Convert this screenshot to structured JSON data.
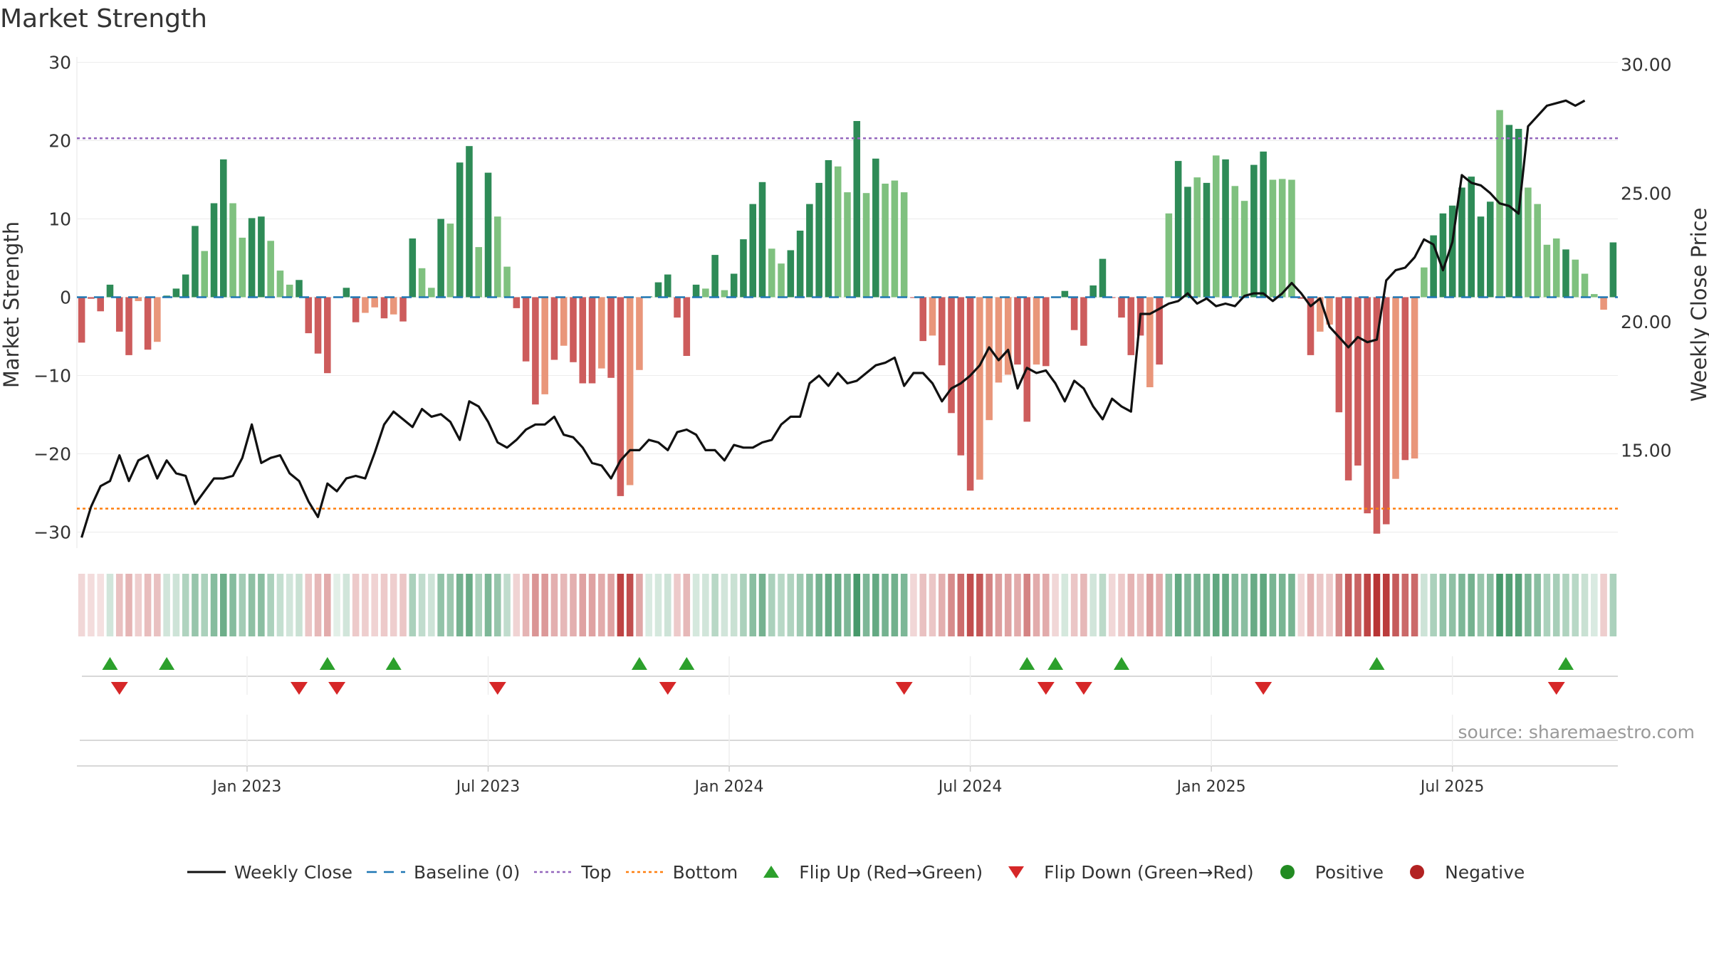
{
  "title": "Market Strength",
  "source": "source: sharemaestro.com",
  "colors": {
    "pos_dark": "#2e8b57",
    "pos_light": "#7fc17f",
    "neg_dark": "#cd5c5c",
    "neg_light": "#e9967a",
    "line": "#111111",
    "baseline": "#1f77b4",
    "top": "#9467bd",
    "bottom": "#ff7f0e",
    "flip_up": "#2ca02c",
    "flip_down": "#d62728",
    "positive": "#228b22",
    "negative": "#b22222"
  },
  "legend": [
    {
      "key": "line",
      "label": "Weekly Close"
    },
    {
      "key": "baseline",
      "label": "Baseline (0)"
    },
    {
      "key": "top",
      "label": "Top"
    },
    {
      "key": "bottom",
      "label": "Bottom"
    },
    {
      "key": "flip_up",
      "label": "Flip Up (Red→Green)"
    },
    {
      "key": "flip_down",
      "label": "Flip Down (Green→Red)"
    },
    {
      "key": "positive",
      "label": "Positive"
    },
    {
      "key": "negative",
      "label": "Negative"
    }
  ],
  "chart_data": {
    "type": "bar",
    "title": "Market Strength",
    "ylabel": "Market Strength",
    "y2label": "Weekly Close Price",
    "ylim": [
      -32.5,
      32.5
    ],
    "y2lim": [
      11.05,
      30.85
    ],
    "yticks": [
      "30",
      "20",
      "10",
      "0",
      "−10",
      "−20",
      "−30"
    ],
    "y2ticks": [
      "30.00",
      "25.00",
      "20.00",
      "15.00"
    ],
    "xticks": [
      "Jan 2023",
      "Jul 2023",
      "Jan 2024",
      "Jul 2024",
      "Jan 2025",
      "Jul 2025"
    ],
    "top_level": 20.3,
    "bottom_level": -27.0,
    "baseline": 0,
    "strength": [
      -5.8,
      -0.2,
      -1.8,
      1.6,
      -4.4,
      -7.4,
      -0.5,
      -6.7,
      -5.7,
      0.2,
      1.1,
      2.9,
      9.1,
      5.9,
      12.0,
      17.6,
      12.0,
      7.6,
      10.1,
      10.3,
      7.2,
      3.4,
      1.6,
      2.2,
      -4.6,
      -7.2,
      -9.7,
      0.1,
      1.2,
      -3.2,
      -2.0,
      -1.3,
      -2.7,
      -2.2,
      -3.1,
      7.5,
      3.7,
      1.2,
      10.0,
      9.4,
      17.2,
      19.3,
      6.4,
      15.9,
      10.3,
      3.9,
      -1.4,
      -8.2,
      -13.7,
      -12.4,
      -8.0,
      -6.2,
      -8.3,
      -11.0,
      -11.0,
      -9.1,
      -10.3,
      -25.4,
      -24.0,
      -9.3,
      0.1,
      1.9,
      2.9,
      -2.6,
      -7.5,
      1.6,
      1.1,
      5.4,
      0.9,
      3.0,
      7.4,
      11.9,
      14.7,
      6.2,
      4.3,
      6.0,
      8.5,
      11.9,
      14.6,
      17.5,
      16.7,
      13.4,
      22.5,
      13.3,
      17.7,
      14.5,
      14.9,
      13.4,
      -0.1,
      -5.6,
      -4.9,
      -8.7,
      -14.8,
      -20.2,
      -24.7,
      -23.3,
      -15.7,
      -10.9,
      -9.9,
      -8.6,
      -15.9,
      -8.6,
      -8.8,
      -0.1,
      0.8,
      -4.2,
      -6.2,
      1.5,
      4.9,
      -0.1,
      -2.6,
      -7.4,
      -4.9,
      -11.5,
      -8.6,
      10.7,
      17.4,
      14.1,
      15.3,
      14.6,
      18.1,
      17.6,
      14.2,
      12.3,
      16.9,
      18.6,
      15.0,
      15.1,
      15.0,
      -0.2,
      -7.4,
      -4.4,
      -3.5,
      -14.7,
      -23.4,
      -21.5,
      -27.6,
      -30.2,
      -29.0,
      -23.2,
      -20.8,
      -20.6,
      3.8,
      7.9,
      10.7,
      11.7,
      14.0,
      15.4,
      10.3,
      12.2,
      23.9,
      22.0,
      21.5,
      14.0,
      11.9,
      6.7,
      7.5,
      6.1,
      4.8,
      3.0,
      0.4,
      -1.6,
      7.0
    ],
    "shade": [
      1,
      1,
      1,
      1,
      1,
      1,
      0,
      1,
      0,
      1,
      1,
      1,
      1,
      0,
      1,
      1,
      0,
      0,
      1,
      1,
      0,
      0,
      0,
      1,
      1,
      1,
      1,
      1,
      1,
      1,
      0,
      0,
      1,
      0,
      1,
      1,
      0,
      0,
      1,
      0,
      1,
      1,
      0,
      1,
      0,
      0,
      1,
      1,
      1,
      0,
      1,
      0,
      1,
      1,
      1,
      0,
      1,
      1,
      0,
      0,
      1,
      1,
      1,
      1,
      1,
      1,
      0,
      1,
      0,
      1,
      1,
      1,
      1,
      0,
      0,
      1,
      1,
      1,
      1,
      1,
      0,
      0,
      1,
      0,
      1,
      0,
      0,
      0,
      1,
      1,
      0,
      1,
      1,
      1,
      1,
      0,
      0,
      0,
      0,
      1,
      1,
      0,
      1,
      1,
      1,
      1,
      1,
      1,
      1,
      1,
      1,
      1,
      1,
      0,
      1,
      0,
      1,
      1,
      0,
      1,
      0,
      1,
      0,
      0,
      1,
      1,
      0,
      0,
      0,
      1,
      1,
      0,
      0,
      1,
      1,
      1,
      1,
      1,
      1,
      0,
      1,
      0,
      0,
      1,
      1,
      1,
      1,
      1,
      1,
      1,
      0,
      1,
      1,
      0,
      0,
      0,
      0,
      1,
      0,
      0,
      0,
      0,
      1,
      1,
      1
    ],
    "weekly_close": [
      11.6,
      12.8,
      13.6,
      13.8,
      14.8,
      13.8,
      14.6,
      14.8,
      13.9,
      14.6,
      14.1,
      14.0,
      12.9,
      13.4,
      13.9,
      13.9,
      14.0,
      14.7,
      16.0,
      14.5,
      14.7,
      14.8,
      14.1,
      13.8,
      13.0,
      12.4,
      13.7,
      13.4,
      13.9,
      14.0,
      13.9,
      14.9,
      16.0,
      16.5,
      16.2,
      15.9,
      16.6,
      16.3,
      16.4,
      16.1,
      15.4,
      16.9,
      16.7,
      16.1,
      15.3,
      15.1,
      15.4,
      15.8,
      16.0,
      16.0,
      16.3,
      15.6,
      15.5,
      15.1,
      14.5,
      14.4,
      13.9,
      14.6,
      15.0,
      15.0,
      15.4,
      15.3,
      15.0,
      15.7,
      15.8,
      15.6,
      15.0,
      15.0,
      14.6,
      15.2,
      15.1,
      15.1,
      15.3,
      15.4,
      16.0,
      16.3,
      16.3,
      17.6,
      17.9,
      17.5,
      18.0,
      17.6,
      17.7,
      18.0,
      18.3,
      18.4,
      18.6,
      17.5,
      18.0,
      18.0,
      17.6,
      16.9,
      17.4,
      17.6,
      17.9,
      18.3,
      19.0,
      18.5,
      18.9,
      17.4,
      18.2,
      18.0,
      18.1,
      17.6,
      16.9,
      17.7,
      17.4,
      16.7,
      16.2,
      17.0,
      16.7,
      16.5,
      20.3,
      20.3,
      20.5,
      20.7,
      20.8,
      21.1,
      20.7,
      20.9,
      20.6,
      20.7,
      20.6,
      21.0,
      21.1,
      21.1,
      20.8,
      21.1,
      21.5,
      21.1,
      20.6,
      20.9,
      19.8,
      19.4,
      19.0,
      19.4,
      19.2,
      19.3,
      21.6,
      22.0,
      22.1,
      22.5,
      23.2,
      23.0,
      22.0,
      23.1,
      25.7,
      25.4,
      25.3,
      25.0,
      24.6,
      24.5,
      24.2,
      27.6,
      28.0,
      28.4,
      28.5,
      28.6,
      28.4,
      28.6
    ],
    "flip_up_index": [
      3,
      9,
      26,
      33,
      59,
      64,
      100,
      103,
      110,
      137,
      157
    ],
    "flip_down_index": [
      4,
      23,
      27,
      44,
      62,
      87,
      102,
      106,
      125,
      156
    ],
    "strip_shade": [
      0.18,
      0.16,
      0.14,
      0.22,
      0.28,
      0.34,
      0.22,
      0.3,
      0.28,
      0.22,
      0.24,
      0.38,
      0.5,
      0.4,
      0.58,
      0.7,
      0.58,
      0.44,
      0.54,
      0.56,
      0.4,
      0.28,
      0.22,
      0.26,
      0.26,
      0.32,
      0.38,
      0.14,
      0.22,
      0.24,
      0.22,
      0.2,
      0.24,
      0.22,
      0.26,
      0.4,
      0.3,
      0.24,
      0.52,
      0.48,
      0.66,
      0.72,
      0.4,
      0.62,
      0.5,
      0.3,
      0.2,
      0.34,
      0.48,
      0.46,
      0.36,
      0.32,
      0.36,
      0.42,
      0.42,
      0.38,
      0.42,
      0.85,
      0.8,
      0.4,
      0.18,
      0.2,
      0.24,
      0.24,
      0.32,
      0.2,
      0.22,
      0.34,
      0.22,
      0.26,
      0.4,
      0.56,
      0.66,
      0.4,
      0.34,
      0.38,
      0.46,
      0.56,
      0.66,
      0.74,
      0.72,
      0.62,
      0.88,
      0.62,
      0.74,
      0.66,
      0.68,
      0.62,
      0.18,
      0.28,
      0.26,
      0.36,
      0.52,
      0.66,
      0.8,
      0.76,
      0.56,
      0.44,
      0.42,
      0.38,
      0.56,
      0.38,
      0.38,
      0.18,
      0.2,
      0.26,
      0.32,
      0.22,
      0.32,
      0.18,
      0.24,
      0.34,
      0.28,
      0.44,
      0.38,
      0.52,
      0.74,
      0.62,
      0.66,
      0.64,
      0.76,
      0.74,
      0.62,
      0.56,
      0.72,
      0.76,
      0.64,
      0.64,
      0.64,
      0.18,
      0.34,
      0.26,
      0.24,
      0.52,
      0.74,
      0.7,
      0.84,
      0.92,
      0.88,
      0.74,
      0.68,
      0.68,
      0.24,
      0.4,
      0.52,
      0.54,
      0.62,
      0.66,
      0.5,
      0.56,
      0.88,
      0.82,
      0.8,
      0.62,
      0.56,
      0.4,
      0.42,
      0.38,
      0.34,
      0.26,
      0.18,
      0.22,
      0.4
    ]
  }
}
